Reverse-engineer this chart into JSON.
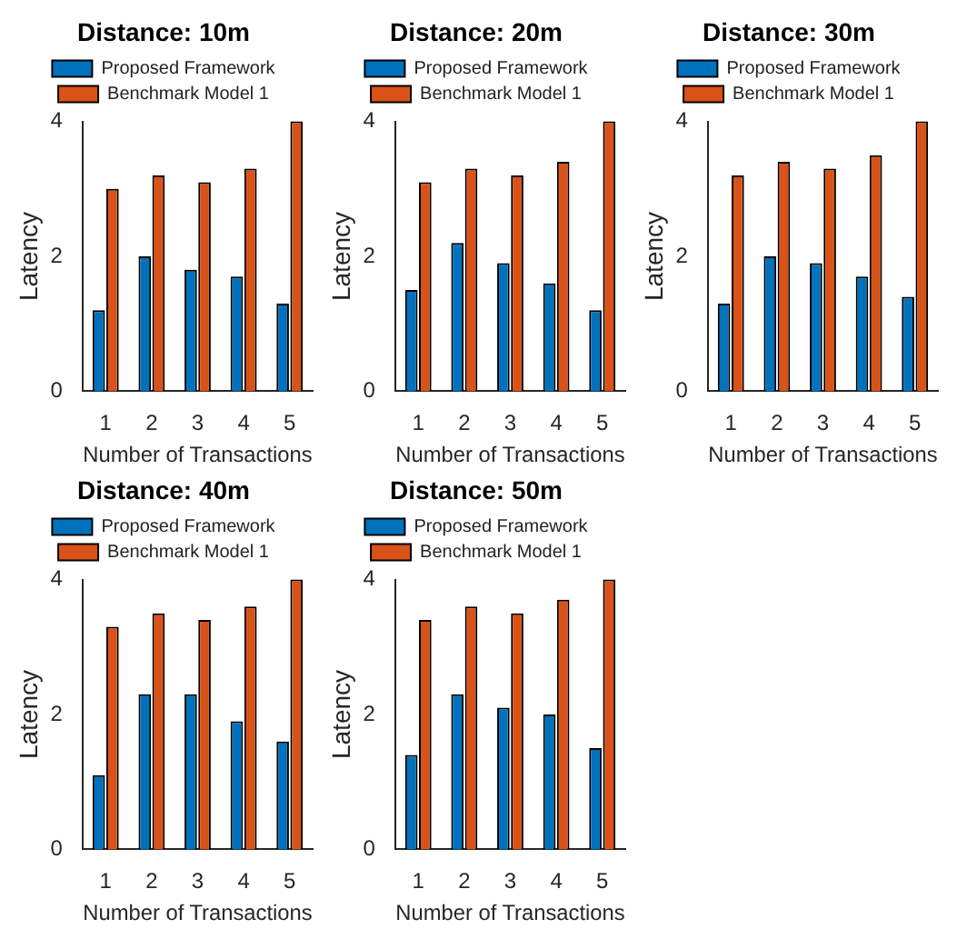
{
  "chart_data": [
    {
      "type": "bar",
      "title": "Distance: 10m",
      "xlabel": "Number of Transactions",
      "ylabel": "Latency",
      "categories": [
        "1",
        "2",
        "3",
        "4",
        "5"
      ],
      "ylim": [
        0,
        4
      ],
      "yticks": [
        0,
        2,
        4
      ],
      "grid": false,
      "legend": "top",
      "series": [
        {
          "name": "Proposed Framework",
          "color": "#0072bd",
          "values": [
            1.2,
            2.0,
            1.8,
            1.7,
            1.3
          ]
        },
        {
          "name": "Benchmark Model 1",
          "color": "#d95319",
          "values": [
            3.0,
            3.2,
            3.1,
            3.3,
            4.0
          ]
        }
      ]
    },
    {
      "type": "bar",
      "title": "Distance: 20m",
      "xlabel": "Number of Transactions",
      "ylabel": "Latency",
      "categories": [
        "1",
        "2",
        "3",
        "4",
        "5"
      ],
      "ylim": [
        0,
        4
      ],
      "yticks": [
        0,
        2,
        4
      ],
      "grid": false,
      "legend": "top",
      "series": [
        {
          "name": "Proposed Framework",
          "color": "#0072bd",
          "values": [
            1.5,
            2.2,
            1.9,
            1.6,
            1.2
          ]
        },
        {
          "name": "Benchmark Model 1",
          "color": "#d95319",
          "values": [
            3.1,
            3.3,
            3.2,
            3.4,
            4.0
          ]
        }
      ]
    },
    {
      "type": "bar",
      "title": "Distance: 30m",
      "xlabel": "Number of Transactions",
      "ylabel": "Latency",
      "categories": [
        "1",
        "2",
        "3",
        "4",
        "5"
      ],
      "ylim": [
        0,
        4
      ],
      "yticks": [
        0,
        2,
        4
      ],
      "grid": false,
      "legend": "top",
      "series": [
        {
          "name": "Proposed Framework",
          "color": "#0072bd",
          "values": [
            1.3,
            2.0,
            1.9,
            1.7,
            1.4
          ]
        },
        {
          "name": "Benchmark Model 1",
          "color": "#d95319",
          "values": [
            3.2,
            3.4,
            3.3,
            3.5,
            4.0
          ]
        }
      ]
    },
    {
      "type": "bar",
      "title": "Distance: 40m",
      "xlabel": "Number of Transactions",
      "ylabel": "Latency",
      "categories": [
        "1",
        "2",
        "3",
        "4",
        "5"
      ],
      "ylim": [
        0,
        4
      ],
      "yticks": [
        0,
        2,
        4
      ],
      "grid": false,
      "legend": "top",
      "series": [
        {
          "name": "Proposed Framework",
          "color": "#0072bd",
          "values": [
            1.1,
            2.3,
            2.3,
            1.9,
            1.6
          ]
        },
        {
          "name": "Benchmark Model 1",
          "color": "#d95319",
          "values": [
            3.3,
            3.5,
            3.4,
            3.6,
            4.0
          ]
        }
      ]
    },
    {
      "type": "bar",
      "title": "Distance: 50m",
      "xlabel": "Number of Transactions",
      "ylabel": "Latency",
      "categories": [
        "1",
        "2",
        "3",
        "4",
        "5"
      ],
      "ylim": [
        0,
        4
      ],
      "yticks": [
        0,
        2,
        4
      ],
      "grid": false,
      "legend": "top",
      "series": [
        {
          "name": "Proposed Framework",
          "color": "#0072bd",
          "values": [
            1.4,
            2.3,
            2.1,
            2.0,
            1.5
          ]
        },
        {
          "name": "Benchmark Model 1",
          "color": "#d95319",
          "values": [
            3.4,
            3.6,
            3.5,
            3.7,
            4.0
          ]
        }
      ]
    }
  ]
}
